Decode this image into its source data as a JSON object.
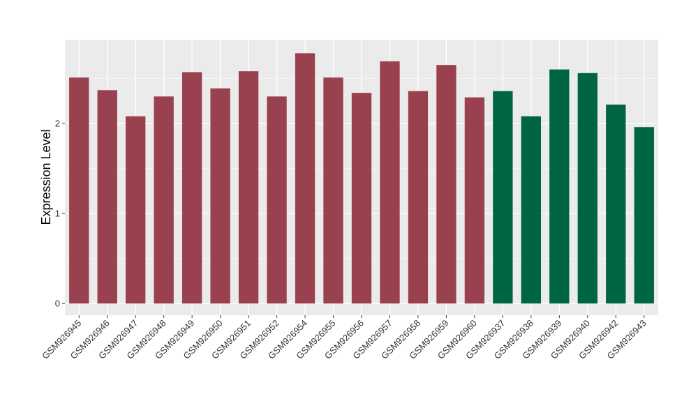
{
  "chart_data": {
    "type": "bar",
    "title": "",
    "xlabel": "",
    "ylabel": "Expression Level",
    "ylim": [
      -0.13,
      2.93
    ],
    "yticks": [
      0,
      1,
      2
    ],
    "grid": true,
    "legend": "none",
    "categories": [
      "GSM926945",
      "GSM926946",
      "GSM926947",
      "GSM926948",
      "GSM926949",
      "GSM926950",
      "GSM926951",
      "GSM926952",
      "GSM926954",
      "GSM926955",
      "GSM926956",
      "GSM926957",
      "GSM926958",
      "GSM926959",
      "GSM926960",
      "GSM926937",
      "GSM926938",
      "GSM926939",
      "GSM926940",
      "GSM926942",
      "GSM926943"
    ],
    "values": [
      2.51,
      2.37,
      2.08,
      2.3,
      2.57,
      2.39,
      2.58,
      2.3,
      2.78,
      2.51,
      2.34,
      2.69,
      2.36,
      2.65,
      2.29,
      2.36,
      2.08,
      2.6,
      2.56,
      2.21,
      1.96
    ],
    "groups": [
      "a",
      "a",
      "a",
      "a",
      "a",
      "a",
      "a",
      "a",
      "a",
      "a",
      "a",
      "a",
      "a",
      "a",
      "a",
      "b",
      "b",
      "b",
      "b",
      "b",
      "b"
    ],
    "colors": {
      "a": "#9a414f",
      "b": "#006544"
    }
  },
  "style": {
    "panel_bg": "#ebebeb",
    "grid_major": "#ffffff",
    "grid_minor": "#f5f5f5",
    "tick_color": "#333333"
  }
}
